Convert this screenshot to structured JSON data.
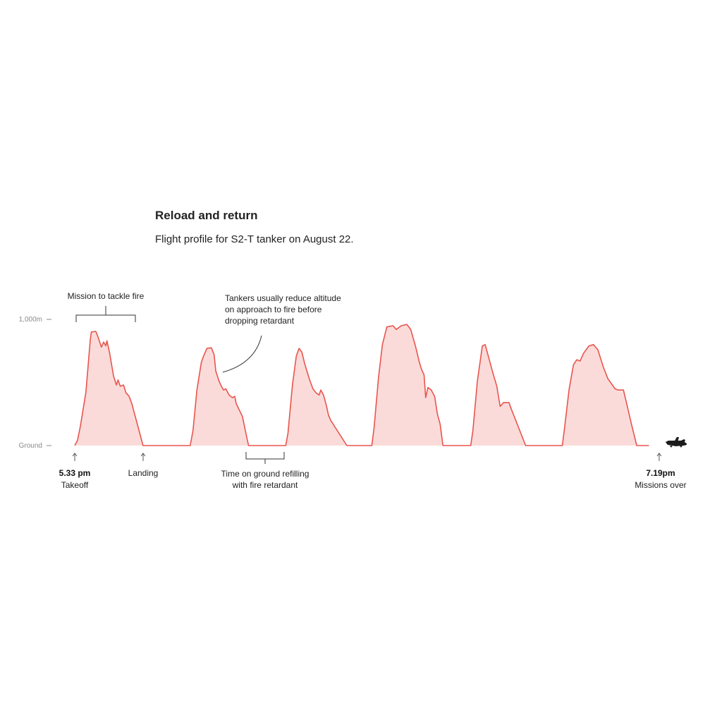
{
  "title": "Reload and return",
  "subtitle": "Flight profile for S2-T tanker on August 22.",
  "colors": {
    "line": "#e8554e",
    "fill": "#fbdbd9",
    "ground": "#e8554e",
    "text": "#222222",
    "axis": "#8a8a8a"
  },
  "icon": "airplane-icon",
  "chart_data": {
    "type": "area",
    "title": "Reload and return",
    "subtitle": "Flight profile for S2-T tanker on August 22.",
    "xlabel": "",
    "ylabel": "",
    "y_ticks": [
      "1,000m",
      "Ground"
    ],
    "ylim": [
      0,
      1000
    ],
    "xlim": [
      0,
      106
    ],
    "x_unit": "minutes after 5.33 pm",
    "series": [
      {
        "points": [
          [
            0,
            0
          ],
          [
            0.5,
            40
          ],
          [
            1,
            150
          ],
          [
            2,
            420
          ],
          [
            2.8,
            840
          ],
          [
            3,
            900
          ],
          [
            3.8,
            905
          ],
          [
            4.2,
            860
          ],
          [
            4.8,
            780
          ],
          [
            5.2,
            820
          ],
          [
            5.6,
            790
          ],
          [
            5.8,
            830
          ],
          [
            6.3,
            730
          ],
          [
            6.6,
            650
          ],
          [
            7,
            550
          ],
          [
            7.5,
            480
          ],
          [
            7.8,
            520
          ],
          [
            8.2,
            470
          ],
          [
            8.8,
            480
          ],
          [
            9.2,
            420
          ],
          [
            9.8,
            390
          ],
          [
            10.3,
            330
          ],
          [
            12.3,
            0
          ],
          [
            20.8,
            0
          ],
          [
            21.3,
            120
          ],
          [
            22,
            440
          ],
          [
            22.8,
            660
          ],
          [
            23.2,
            710
          ],
          [
            23.8,
            770
          ],
          [
            24.6,
            775
          ],
          [
            25.1,
            720
          ],
          [
            25.4,
            590
          ],
          [
            26,
            510
          ],
          [
            26.4,
            470
          ],
          [
            26.8,
            440
          ],
          [
            27.2,
            450
          ],
          [
            27.8,
            400
          ],
          [
            28.4,
            380
          ],
          [
            28.8,
            390
          ],
          [
            29.1,
            330
          ],
          [
            30.2,
            230
          ],
          [
            31,
            60
          ],
          [
            31.3,
            0
          ],
          [
            38,
            0
          ],
          [
            38.4,
            100
          ],
          [
            39.2,
            480
          ],
          [
            39.9,
            710
          ],
          [
            40.4,
            770
          ],
          [
            40.9,
            740
          ],
          [
            41.4,
            650
          ],
          [
            42.3,
            520
          ],
          [
            42.9,
            450
          ],
          [
            43.4,
            420
          ],
          [
            44,
            400
          ],
          [
            44.3,
            440
          ],
          [
            44.8,
            400
          ],
          [
            45.3,
            320
          ],
          [
            45.7,
            240
          ],
          [
            46.1,
            200
          ],
          [
            49,
            0
          ],
          [
            53.5,
            0
          ],
          [
            53.9,
            140
          ],
          [
            54.7,
            540
          ],
          [
            55.4,
            800
          ],
          [
            56.2,
            940
          ],
          [
            57.3,
            950
          ],
          [
            57.9,
            920
          ],
          [
            58.8,
            950
          ],
          [
            59.8,
            960
          ],
          [
            60.5,
            920
          ],
          [
            61.4,
            780
          ],
          [
            62,
            670
          ],
          [
            62.4,
            610
          ],
          [
            62.9,
            560
          ],
          [
            63.2,
            380
          ],
          [
            63.6,
            460
          ],
          [
            64.2,
            440
          ],
          [
            64.8,
            390
          ],
          [
            65.3,
            250
          ],
          [
            65.8,
            170
          ],
          [
            66.3,
            0
          ],
          [
            71.3,
            0
          ],
          [
            71.7,
            120
          ],
          [
            72.5,
            510
          ],
          [
            73.4,
            790
          ],
          [
            73.9,
            800
          ],
          [
            74.4,
            720
          ],
          [
            75.2,
            590
          ],
          [
            76,
            470
          ],
          [
            76.6,
            310
          ],
          [
            77.2,
            340
          ],
          [
            78.2,
            340
          ],
          [
            78.6,
            290
          ],
          [
            81.2,
            0
          ],
          [
            87.8,
            0
          ],
          [
            88.2,
            140
          ],
          [
            89,
            440
          ],
          [
            89.8,
            640
          ],
          [
            90.4,
            680
          ],
          [
            91,
            670
          ],
          [
            91.6,
            730
          ],
          [
            92.6,
            790
          ],
          [
            93.4,
            800
          ],
          [
            94.2,
            760
          ],
          [
            95.2,
            620
          ],
          [
            96,
            530
          ],
          [
            97.3,
            450
          ],
          [
            97.8,
            440
          ],
          [
            98.8,
            440
          ],
          [
            99.4,
            330
          ],
          [
            100.3,
            160
          ],
          [
            101.2,
            0
          ],
          [
            102.8,
            0
          ],
          [
            103.4,
            0
          ]
        ]
      }
    ],
    "annotations": [
      {
        "text": "Mission to tackle fire"
      },
      {
        "lines": [
          "Tankers usually reduce altitude",
          "on approach to fire before",
          "dropping retardant"
        ]
      },
      {
        "time": "5.33 pm",
        "label": "Takeoff"
      },
      {
        "label": "Landing"
      },
      {
        "lines": [
          "Time on ground refilling",
          "with fire retardant"
        ]
      },
      {
        "time": "7.19pm",
        "label": "Missions over"
      }
    ]
  }
}
